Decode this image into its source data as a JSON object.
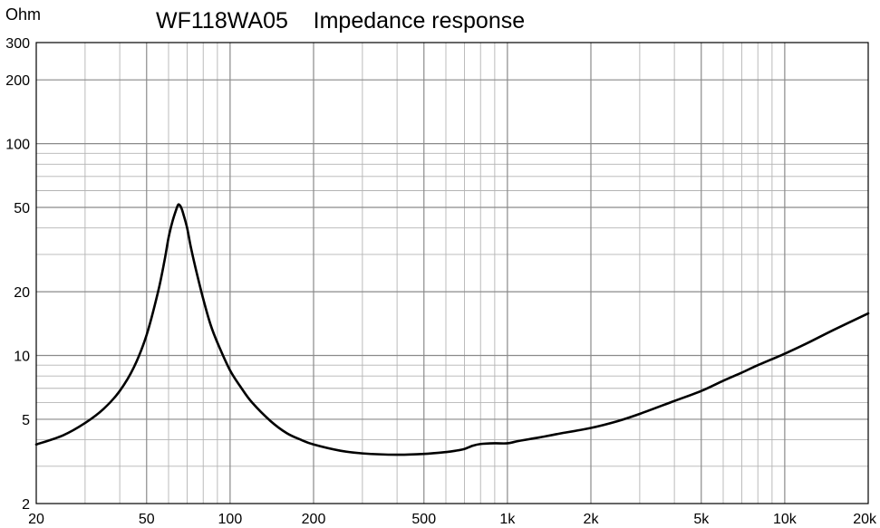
{
  "chart_data": {
    "type": "line",
    "title": "WF118WA05    Impedance response",
    "xlabel": "",
    "ylabel": "Ohm",
    "x_scale": "log",
    "y_scale": "log",
    "xlim": [
      20,
      20000
    ],
    "ylim": [
      2,
      300
    ],
    "grid": true,
    "x_ticks": [
      {
        "value": 20,
        "label": "20"
      },
      {
        "value": 50,
        "label": "50"
      },
      {
        "value": 100,
        "label": "100"
      },
      {
        "value": 200,
        "label": "200"
      },
      {
        "value": 500,
        "label": "500"
      },
      {
        "value": 1000,
        "label": "1k"
      },
      {
        "value": 2000,
        "label": "2k"
      },
      {
        "value": 5000,
        "label": "5k"
      },
      {
        "value": 10000,
        "label": "10k"
      },
      {
        "value": 20000,
        "label": "20k"
      }
    ],
    "y_ticks": [
      {
        "value": 2,
        "label": "2"
      },
      {
        "value": 5,
        "label": "5"
      },
      {
        "value": 10,
        "label": "10"
      },
      {
        "value": 20,
        "label": "20"
      },
      {
        "value": 50,
        "label": "50"
      },
      {
        "value": 100,
        "label": "100"
      },
      {
        "value": 200,
        "label": "200"
      },
      {
        "value": 300,
        "label": "300"
      }
    ],
    "series": [
      {
        "color": "#000000",
        "points": [
          [
            20,
            3.8
          ],
          [
            25,
            4.2
          ],
          [
            30,
            4.8
          ],
          [
            35,
            5.6
          ],
          [
            40,
            6.8
          ],
          [
            45,
            8.8
          ],
          [
            50,
            12.5
          ],
          [
            55,
            20
          ],
          [
            58,
            28
          ],
          [
            60,
            36
          ],
          [
            62,
            43
          ],
          [
            64,
            49
          ],
          [
            65,
            51.5
          ],
          [
            66,
            51
          ],
          [
            67,
            49
          ],
          [
            68,
            46
          ],
          [
            70,
            40
          ],
          [
            72,
            33
          ],
          [
            75,
            26
          ],
          [
            80,
            18.5
          ],
          [
            85,
            14
          ],
          [
            90,
            11.5
          ],
          [
            100,
            8.5
          ],
          [
            110,
            7
          ],
          [
            120,
            6
          ],
          [
            140,
            4.9
          ],
          [
            160,
            4.3
          ],
          [
            180,
            4
          ],
          [
            200,
            3.8
          ],
          [
            250,
            3.55
          ],
          [
            300,
            3.45
          ],
          [
            400,
            3.4
          ],
          [
            500,
            3.43
          ],
          [
            600,
            3.5
          ],
          [
            650,
            3.55
          ],
          [
            700,
            3.62
          ],
          [
            750,
            3.75
          ],
          [
            800,
            3.82
          ],
          [
            900,
            3.85
          ],
          [
            1000,
            3.85
          ],
          [
            1100,
            3.95
          ],
          [
            1300,
            4.1
          ],
          [
            1500,
            4.25
          ],
          [
            2000,
            4.55
          ],
          [
            2500,
            4.9
          ],
          [
            3000,
            5.3
          ],
          [
            4000,
            6.1
          ],
          [
            5000,
            6.8
          ],
          [
            6000,
            7.6
          ],
          [
            7000,
            8.3
          ],
          [
            8000,
            9
          ],
          [
            10000,
            10.2
          ],
          [
            12000,
            11.4
          ],
          [
            15000,
            13.2
          ],
          [
            20000,
            15.8
          ]
        ]
      }
    ]
  }
}
